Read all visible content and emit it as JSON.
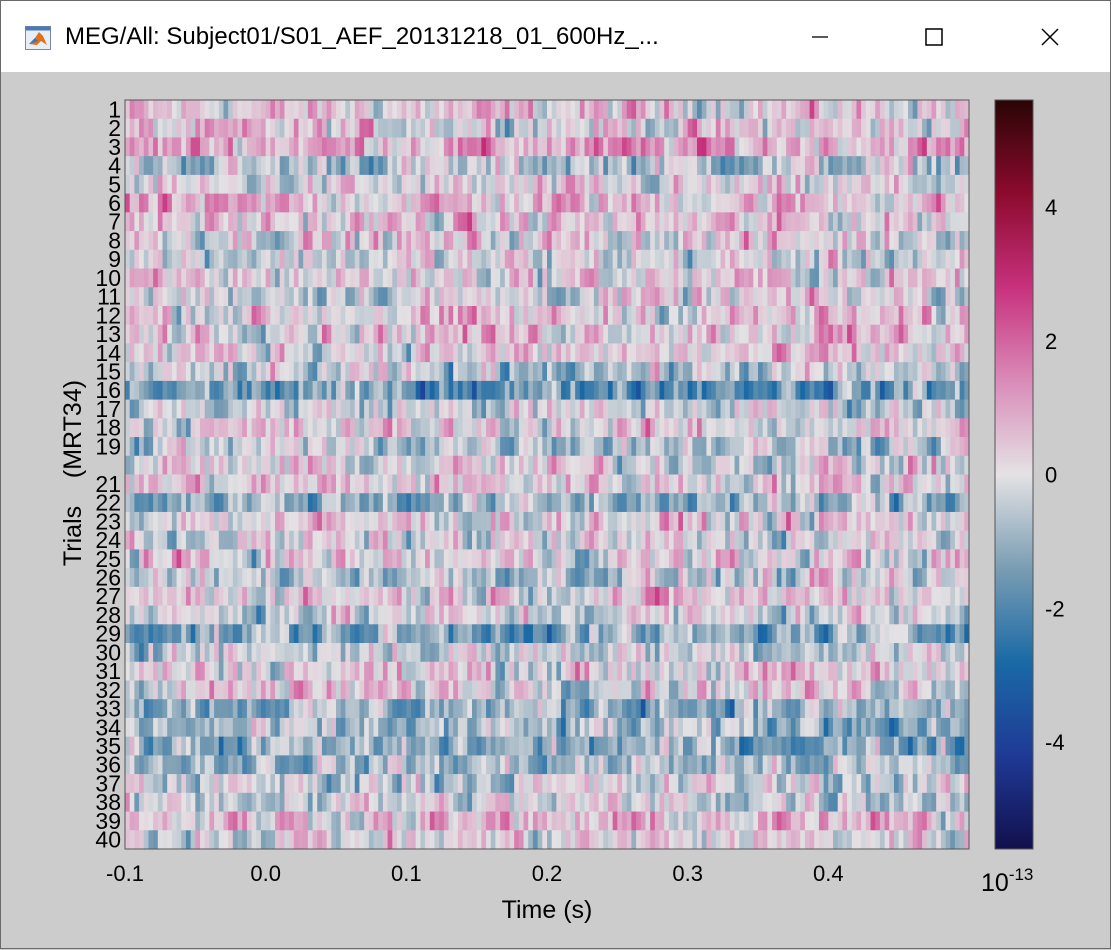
{
  "window": {
    "title": "MEG/All: Subject01/S01_AEF_20131218_01_600Hz_...",
    "icons": [
      "matlab-icon",
      "minimize-icon",
      "maximize-icon",
      "close-icon"
    ]
  },
  "chart_data": {
    "type": "heatmap",
    "title": "",
    "xlabel": "Time (s)",
    "ylabel": "Trials    (MRT34)",
    "xlim": [
      -0.1,
      0.5
    ],
    "x_ticks": [
      -0.1,
      0.0,
      0.1,
      0.2,
      0.3,
      0.4
    ],
    "x_tick_labels": [
      "-0.1",
      "0.0",
      "0.1",
      "0.2",
      "0.3",
      "0.4"
    ],
    "n_rows": 40,
    "y_tick_labels": [
      "1",
      "2",
      "3",
      "4",
      "5",
      "6",
      "7",
      "8",
      "9",
      "10",
      "11",
      "12",
      "13",
      "14",
      "15",
      "16",
      "17",
      "18",
      "19",
      "21",
      "22",
      "23",
      "24",
      "25",
      "26",
      "27",
      "28",
      "29",
      "30",
      "31",
      "32",
      "33",
      "34",
      "35",
      "36",
      "37",
      "38",
      "39",
      "40"
    ],
    "y_tick_rows": [
      1,
      2,
      3,
      4,
      5,
      6,
      7,
      8,
      9,
      10,
      11,
      12,
      13,
      14,
      15,
      16,
      17,
      18,
      19,
      21,
      22,
      23,
      24,
      25,
      26,
      27,
      28,
      29,
      30,
      31,
      32,
      33,
      34,
      35,
      36,
      37,
      38,
      39,
      40
    ],
    "n_samples": 180,
    "row_mean_approx": [
      0.3,
      0.2,
      1.0,
      -0.6,
      -0.2,
      0.6,
      0.3,
      0.2,
      -0.2,
      0.2,
      -0.1,
      0.3,
      0.6,
      0.2,
      -0.6,
      -1.6,
      -0.3,
      0.1,
      -0.4,
      0.0,
      0.3,
      -1.0,
      0.2,
      -0.2,
      0.1,
      -0.5,
      0.4,
      -0.2,
      -1.3,
      -0.2,
      0.2,
      0.3,
      -1.0,
      -1.0,
      -1.2,
      -0.8,
      -0.3,
      -0.2,
      0.5,
      0.1
    ],
    "colorbar": {
      "range": [
        -5.6,
        5.6
      ],
      "ticks": [
        -4,
        -2,
        0,
        2,
        4
      ],
      "tick_labels": [
        "-4",
        "-2",
        "0",
        "2",
        "4"
      ],
      "exponent_label": "10",
      "exponent": "-13",
      "colors": [
        "#12104d",
        "#1f3a96",
        "#1a6aa6",
        "#7a9db3",
        "#e4e2e4",
        "#d98bb8",
        "#c8317d",
        "#8c0a2e",
        "#2a0505"
      ]
    }
  }
}
